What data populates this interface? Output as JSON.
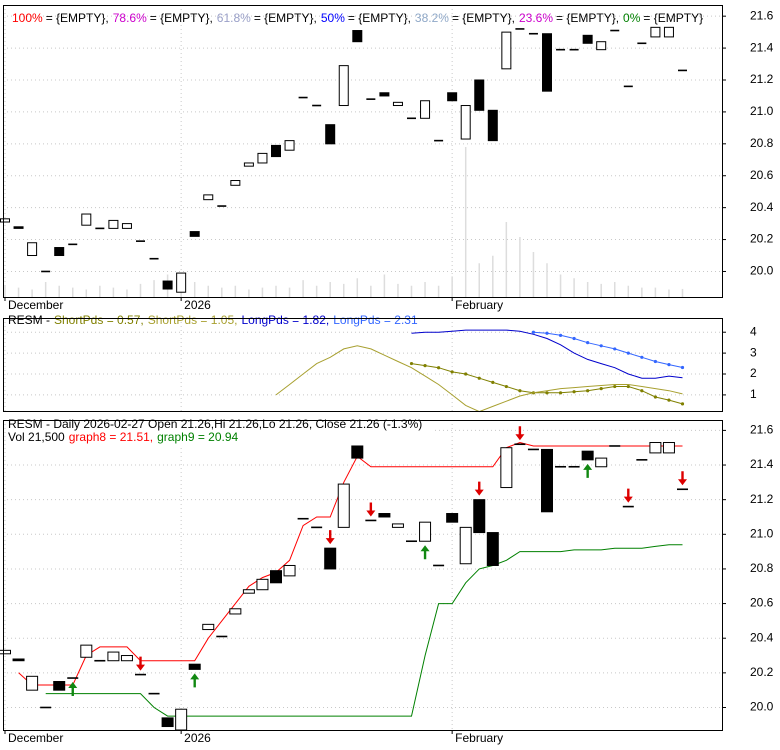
{
  "chart_data": [
    {
      "type": "candlestick",
      "legend": [
        {
          "label": "100%",
          "color": "#ff0000",
          "value": "= {EMPTY},"
        },
        {
          "label": "78.6%",
          "color": "#cc00cc",
          "value": "= {EMPTY},"
        },
        {
          "label": "61.8%",
          "color": "#9aa0c8",
          "value": "= {EMPTY},"
        },
        {
          "label": "50%",
          "color": "#0000ff",
          "value": "= {EMPTY},"
        },
        {
          "label": "38.2%",
          "color": "#8fa8c8",
          "value": "= {EMPTY},"
        },
        {
          "label": "23.6%",
          "color": "#cc00cc",
          "value": "= {EMPTY},"
        },
        {
          "label": "0%",
          "color": "#008000",
          "value": "= {EMPTY}"
        }
      ],
      "categories": [
        "December",
        null,
        null,
        null,
        null,
        null,
        null,
        null,
        null,
        null,
        null,
        null,
        null,
        "2026",
        null,
        null,
        null,
        null,
        null,
        null,
        null,
        null,
        null,
        null,
        null,
        null,
        null,
        null,
        null,
        null,
        null,
        null,
        null,
        "February",
        null,
        null,
        null,
        null,
        null,
        null,
        null,
        null,
        null,
        null,
        null,
        null,
        null,
        null,
        null,
        null,
        null
      ],
      "open": [
        20.31,
        20.28,
        20.1,
        20.0,
        20.15,
        20.17,
        20.29,
        20.27,
        20.27,
        20.27,
        20.19,
        20.08,
        19.94,
        19.87,
        20.25,
        20.45,
        20.41,
        20.54,
        20.66,
        20.68,
        20.79,
        20.76,
        21.09,
        21.04,
        20.92,
        21.04,
        21.51,
        21.08,
        21.12,
        21.04,
        20.96,
        20.96,
        20.82,
        21.12,
        20.83,
        21.2,
        21.01,
        21.27,
        21.52,
        21.49,
        21.49,
        21.39,
        21.39,
        21.48,
        21.39,
        21.51,
        21.16,
        21.43,
        21.47,
        21.47,
        21.26
      ],
      "close": [
        20.33,
        20.27,
        20.18,
        20.0,
        20.1,
        20.17,
        20.36,
        20.27,
        20.32,
        20.3,
        20.19,
        20.08,
        19.89,
        19.99,
        20.22,
        20.48,
        20.41,
        20.57,
        20.68,
        20.74,
        20.72,
        20.82,
        21.09,
        21.04,
        20.8,
        21.29,
        21.44,
        21.08,
        21.1,
        21.06,
        20.96,
        21.07,
        20.82,
        21.07,
        21.04,
        21.01,
        20.82,
        21.5,
        21.52,
        21.49,
        21.13,
        21.39,
        21.39,
        21.43,
        21.44,
        21.51,
        21.16,
        21.43,
        21.53,
        21.53,
        21.26
      ],
      "volume": [
        30000,
        25000,
        20000,
        40000,
        30000,
        25000,
        20000,
        30000,
        25000,
        20000,
        35000,
        45000,
        60000,
        50000,
        40000,
        30000,
        25000,
        30000,
        20000,
        25000,
        30000,
        25000,
        45000,
        30000,
        40000,
        35000,
        50000,
        30000,
        60000,
        35000,
        30000,
        40000,
        30000,
        55000,
        400000,
        90000,
        110000,
        200000,
        160000,
        120000,
        90000,
        60000,
        50000,
        40000,
        35000,
        40000,
        30000,
        25000,
        25000,
        20000,
        21500
      ],
      "volume_color": "#dddddd",
      "ylim": [
        19.84,
        21.67
      ],
      "yticks": [
        {
          "value": 20,
          "label": "20.0"
        },
        20.2,
        20.4,
        20.6,
        20.8,
        {
          "value": 21,
          "label": "21.0"
        },
        21.2,
        21.4,
        21.6
      ],
      "grid": true
    },
    {
      "type": "line",
      "title": "RESM -",
      "series": [
        {
          "name": "ShortPds = 0.57,",
          "color": "#808000",
          "markers": true,
          "values": [
            null,
            null,
            null,
            null,
            null,
            null,
            null,
            null,
            null,
            null,
            null,
            null,
            null,
            null,
            null,
            null,
            null,
            null,
            null,
            null,
            null,
            null,
            null,
            null,
            null,
            null,
            null,
            null,
            null,
            null,
            2.5,
            2.4,
            2.3,
            2.1,
            2.0,
            1.8,
            1.6,
            1.4,
            1.2,
            1.1,
            1.1,
            1.1,
            1.15,
            1.2,
            1.3,
            1.4,
            1.4,
            1.2,
            0.9,
            0.75,
            0.57
          ]
        },
        {
          "name": "ShortPds = 1.05,",
          "color": "#a8a030",
          "markers": false,
          "values": [
            null,
            null,
            null,
            null,
            null,
            null,
            null,
            null,
            null,
            null,
            null,
            null,
            null,
            null,
            null,
            null,
            null,
            null,
            null,
            null,
            1.0,
            1.5,
            2.0,
            2.5,
            2.8,
            3.2,
            3.35,
            3.2,
            2.9,
            2.6,
            2.3,
            1.9,
            1.5,
            1.0,
            0.5,
            0.2,
            0.45,
            0.7,
            0.95,
            1.1,
            1.2,
            1.3,
            1.35,
            1.4,
            1.45,
            1.5,
            1.5,
            1.4,
            1.3,
            1.2,
            1.05
          ]
        },
        {
          "name": "LongPds = 1.82,",
          "color": "#0000cc",
          "markers": false,
          "values": [
            null,
            null,
            null,
            null,
            null,
            null,
            null,
            null,
            null,
            null,
            null,
            null,
            null,
            null,
            null,
            null,
            null,
            null,
            null,
            null,
            null,
            null,
            null,
            null,
            null,
            null,
            null,
            null,
            null,
            null,
            3.95,
            4.0,
            4.0,
            4.05,
            4.1,
            4.1,
            4.1,
            4.1,
            4.05,
            3.9,
            3.7,
            3.4,
            3.0,
            2.7,
            2.5,
            2.3,
            2.0,
            1.8,
            1.8,
            1.9,
            1.82
          ]
        },
        {
          "name": "LongPds = 2.31",
          "color": "#3366ff",
          "markers": true,
          "values": [
            null,
            null,
            null,
            null,
            null,
            null,
            null,
            null,
            null,
            null,
            null,
            null,
            null,
            null,
            null,
            null,
            null,
            null,
            null,
            null,
            null,
            null,
            null,
            null,
            null,
            null,
            null,
            null,
            null,
            null,
            null,
            null,
            null,
            null,
            null,
            null,
            null,
            null,
            null,
            4.0,
            3.95,
            3.85,
            3.7,
            3.5,
            3.35,
            3.2,
            3.0,
            2.8,
            2.6,
            2.45,
            2.31
          ]
        }
      ],
      "ylim": [
        0.23,
        4.68
      ],
      "yticks": [
        1,
        2,
        3,
        4
      ],
      "grid": true
    },
    {
      "type": "candlestick",
      "title": "RESM - Daily 2026-02-27 Open 21.26,Hi 21.26,Lo 21.26, Close 21.26 (-1.3%)",
      "volume_label": "Vol 21,500",
      "series": [
        {
          "name": "graph8 = 21.51,",
          "color": "#ff0000",
          "values": [
            null,
            20.2,
            20.13,
            20.13,
            20.13,
            20.13,
            20.3,
            20.35,
            20.35,
            20.35,
            20.27,
            20.27,
            20.27,
            20.27,
            20.27,
            20.4,
            20.5,
            20.6,
            20.7,
            20.75,
            20.78,
            20.85,
            21.05,
            21.1,
            21.1,
            21.3,
            21.45,
            21.39,
            21.39,
            21.39,
            21.39,
            21.39,
            21.39,
            21.39,
            21.39,
            21.39,
            21.39,
            21.5,
            21.53,
            21.51,
            21.51,
            21.51,
            21.51,
            21.51,
            21.51,
            21.51,
            21.51,
            21.51,
            21.51,
            21.51,
            21.51
          ]
        },
        {
          "name": "graph9 = 20.94",
          "color": "#008000",
          "values": [
            null,
            null,
            null,
            20.08,
            20.08,
            20.08,
            20.08,
            20.08,
            20.08,
            20.08,
            20.08,
            20.0,
            19.95,
            19.95,
            19.95,
            19.95,
            19.95,
            19.95,
            19.95,
            19.95,
            19.95,
            19.95,
            19.95,
            19.95,
            19.95,
            19.95,
            19.95,
            19.95,
            19.95,
            19.95,
            19.95,
            20.3,
            20.6,
            20.6,
            20.72,
            20.8,
            20.82,
            20.85,
            20.9,
            20.9,
            20.9,
            20.9,
            20.91,
            20.91,
            20.91,
            20.92,
            20.92,
            20.92,
            20.93,
            20.94,
            20.94
          ]
        }
      ],
      "down_arrows": [
        10,
        24,
        27,
        35,
        38,
        46,
        50
      ],
      "up_arrows": [
        5,
        14,
        31,
        43
      ],
      "down_color": "#dd0000",
      "up_color": "#118811",
      "ylim": [
        19.87,
        21.66
      ],
      "yticks": [
        {
          "value": 20,
          "label": "20.0"
        },
        20.2,
        20.4,
        20.6,
        20.8,
        {
          "value": 21,
          "label": "21.0"
        },
        21.2,
        21.4,
        21.6
      ],
      "grid": true
    }
  ]
}
